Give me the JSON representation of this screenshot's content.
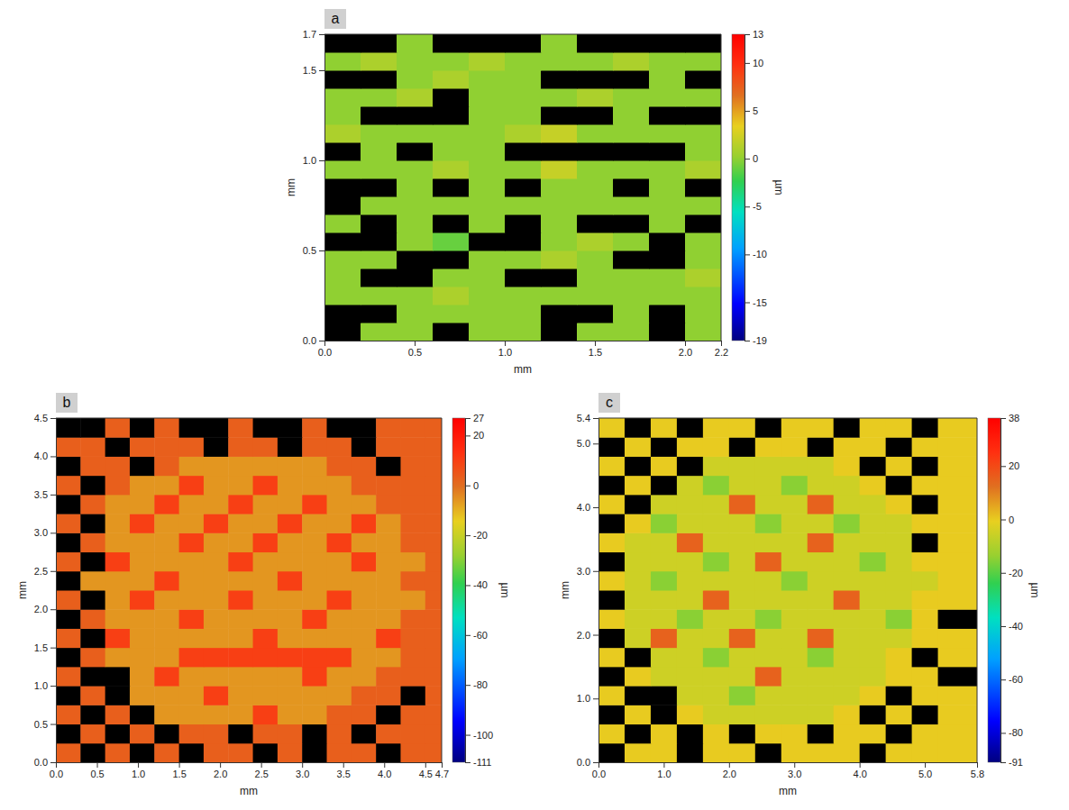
{
  "chart_data": [
    {
      "type": "heatmap",
      "title": "a",
      "x_label": "mm",
      "y_label": "mm",
      "xlim": [
        0,
        2.2
      ],
      "ylim": [
        0,
        1.7
      ],
      "xticks": [
        {
          "value": 0,
          "label": "0.0"
        },
        0.5,
        {
          "value": 1,
          "label": "1.0"
        },
        1.5,
        {
          "value": 2,
          "label": "2.0"
        },
        2.2
      ],
      "yticks": [
        {
          "value": 0,
          "label": "0.0"
        },
        0.5,
        {
          "value": 1,
          "label": "1.0"
        },
        1.5,
        1.7
      ],
      "x": [
        0.1,
        0.3,
        0.5,
        0.7,
        0.9,
        1.1,
        1.3,
        1.5,
        1.7,
        1.9,
        2.1
      ],
      "y": [
        0.05,
        0.15,
        0.25,
        0.35,
        0.45,
        0.55,
        0.65,
        0.75,
        0.85,
        0.95,
        1.05,
        1.15,
        1.25,
        1.35,
        1.45,
        1.55,
        1.65
      ],
      "z": [
        [
          null,
          0,
          0,
          null,
          0,
          0,
          null,
          0,
          0,
          null,
          0
        ],
        [
          null,
          null,
          0,
          0,
          0,
          0,
          null,
          null,
          0,
          null,
          0
        ],
        [
          0,
          0,
          0,
          1,
          0,
          0,
          0,
          0,
          0,
          0,
          0
        ],
        [
          0,
          null,
          null,
          0,
          0,
          null,
          null,
          0,
          0,
          0,
          1
        ],
        [
          0,
          0,
          null,
          null,
          0,
          0,
          1,
          0,
          null,
          null,
          0
        ],
        [
          null,
          null,
          0,
          -1,
          null,
          null,
          0,
          1,
          0,
          null,
          0
        ],
        [
          0,
          null,
          0,
          null,
          0,
          null,
          0,
          null,
          null,
          0,
          null
        ],
        [
          null,
          0,
          0,
          0,
          0,
          0,
          0,
          0,
          0,
          0,
          0
        ],
        [
          null,
          null,
          0,
          null,
          0,
          null,
          0,
          0,
          null,
          0,
          null
        ],
        [
          0,
          0,
          0,
          1,
          0,
          0,
          2,
          0,
          0,
          0,
          1
        ],
        [
          null,
          0,
          null,
          0,
          0,
          null,
          null,
          null,
          null,
          null,
          0
        ],
        [
          1,
          0,
          0,
          0,
          0,
          1,
          2,
          0,
          0,
          0,
          0
        ],
        [
          0,
          null,
          null,
          null,
          0,
          0,
          null,
          null,
          0,
          null,
          null
        ],
        [
          0,
          0,
          1,
          null,
          0,
          0,
          0,
          1,
          0,
          0,
          0
        ],
        [
          null,
          null,
          0,
          1,
          0,
          0,
          null,
          null,
          null,
          0,
          null
        ],
        [
          0,
          1,
          0,
          0,
          1,
          0,
          0,
          0,
          1,
          0,
          0
        ],
        [
          null,
          null,
          0,
          null,
          null,
          null,
          0,
          null,
          null,
          null,
          null
        ]
      ],
      "colorbar": {
        "range": [
          -19,
          13
        ],
        "ticks": [
          13,
          10,
          5,
          0,
          -5,
          -10,
          -15,
          -19
        ],
        "label": "µm"
      }
    },
    {
      "type": "heatmap",
      "title": "b",
      "x_label": "mm",
      "y_label": "mm",
      "xlim": [
        0,
        4.7
      ],
      "ylim": [
        0,
        4.5
      ],
      "xticks": [
        {
          "value": 0,
          "label": "0.0"
        },
        0.5,
        {
          "value": 1,
          "label": "1.0"
        },
        1.5,
        {
          "value": 2,
          "label": "2.0"
        },
        2.5,
        {
          "value": 3,
          "label": "3.0"
        },
        3.5,
        {
          "value": 4,
          "label": "4.0"
        },
        4.5,
        4.7
      ],
      "yticks": [
        {
          "value": 0,
          "label": "0.0"
        },
        0.5,
        {
          "value": 1,
          "label": "1.0"
        },
        1.5,
        {
          "value": 2,
          "label": "2.0"
        },
        2.5,
        {
          "value": 3,
          "label": "3.0"
        },
        3.5,
        {
          "value": 4,
          "label": "4.0"
        },
        4.5
      ],
      "x": [
        0.15,
        0.45,
        0.75,
        1.05,
        1.35,
        1.65,
        1.95,
        2.25,
        2.55,
        2.85,
        3.15,
        3.45,
        3.75,
        4.05,
        4.35,
        4.65
      ],
      "y": [
        0.125,
        0.375,
        0.625,
        0.875,
        1.125,
        1.375,
        1.625,
        1.875,
        2.125,
        2.375,
        2.625,
        2.875,
        3.125,
        3.375,
        3.625,
        3.875,
        4.125,
        4.375
      ],
      "z": [
        [
          3,
          null,
          3,
          null,
          3,
          null,
          3,
          3,
          null,
          3,
          null,
          3,
          3,
          null,
          3,
          3
        ],
        [
          null,
          3,
          null,
          3,
          null,
          3,
          3,
          null,
          3,
          3,
          null,
          3,
          null,
          3,
          3,
          3
        ],
        [
          3,
          null,
          3,
          null,
          -6,
          -6,
          -6,
          -6,
          10,
          -6,
          -6,
          3,
          3,
          null,
          3,
          3
        ],
        [
          null,
          3,
          null,
          -6,
          -6,
          -6,
          10,
          -6,
          -6,
          -6,
          -6,
          -6,
          3,
          3,
          null,
          3
        ],
        [
          3,
          null,
          null,
          -6,
          10,
          -6,
          -6,
          -6,
          -6,
          -6,
          10,
          -6,
          -6,
          3,
          3,
          3
        ],
        [
          null,
          3,
          -6,
          -6,
          -6,
          10,
          10,
          10,
          10,
          10,
          10,
          10,
          -6,
          -6,
          3,
          3
        ],
        [
          3,
          null,
          10,
          -6,
          -6,
          -6,
          -6,
          -6,
          10,
          -6,
          -6,
          -6,
          -6,
          10,
          3,
          3
        ],
        [
          null,
          3,
          -6,
          -6,
          -6,
          10,
          -6,
          -6,
          -6,
          -6,
          10,
          -6,
          -6,
          -6,
          3,
          3
        ],
        [
          3,
          null,
          -6,
          10,
          -6,
          -6,
          -6,
          10,
          -6,
          -6,
          -6,
          10,
          -6,
          -6,
          -6,
          3
        ],
        [
          null,
          -6,
          -6,
          -6,
          10,
          -6,
          -6,
          -6,
          -6,
          10,
          -6,
          -6,
          -6,
          -6,
          3,
          3
        ],
        [
          3,
          null,
          10,
          -6,
          -6,
          -6,
          -6,
          10,
          -6,
          -6,
          -6,
          -6,
          10,
          -6,
          -6,
          3
        ],
        [
          null,
          3,
          -6,
          -6,
          -6,
          10,
          -6,
          -6,
          10,
          -6,
          -6,
          10,
          -6,
          -6,
          3,
          3
        ],
        [
          3,
          null,
          -6,
          10,
          -6,
          -6,
          10,
          -6,
          -6,
          10,
          -6,
          -6,
          10,
          -6,
          3,
          3
        ],
        [
          null,
          3,
          -6,
          -6,
          10,
          -6,
          -6,
          10,
          -6,
          -6,
          10,
          -6,
          -6,
          3,
          3,
          3
        ],
        [
          3,
          null,
          3,
          -6,
          -6,
          10,
          -6,
          -6,
          10,
          -6,
          -6,
          -6,
          3,
          3,
          3,
          3
        ],
        [
          null,
          3,
          3,
          null,
          3,
          -6,
          -6,
          -6,
          -6,
          -6,
          -6,
          3,
          3,
          null,
          3,
          3
        ],
        [
          3,
          3,
          null,
          3,
          3,
          3,
          null,
          3,
          3,
          null,
          3,
          3,
          null,
          3,
          3,
          3
        ],
        [
          null,
          null,
          3,
          null,
          3,
          null,
          null,
          3,
          null,
          null,
          3,
          null,
          null,
          3,
          3,
          3
        ]
      ],
      "colorbar": {
        "range": [
          -111,
          27
        ],
        "ticks": [
          27,
          20,
          0,
          -20,
          -40,
          -60,
          -80,
          -100,
          -111
        ],
        "label": "µm"
      }
    },
    {
      "type": "heatmap",
      "title": "c",
      "x_label": "mm",
      "y_label": "mm",
      "xlim": [
        0,
        5.8
      ],
      "ylim": [
        0,
        5.4
      ],
      "xticks": [
        {
          "value": 0,
          "label": "0.0"
        },
        {
          "value": 1,
          "label": "1.0"
        },
        {
          "value": 2,
          "label": "2.0"
        },
        {
          "value": 3,
          "label": "3.0"
        },
        {
          "value": 4,
          "label": "4.0"
        },
        {
          "value": 5,
          "label": "5.0"
        },
        5.8
      ],
      "yticks": [
        {
          "value": 0,
          "label": "0.0"
        },
        {
          "value": 1,
          "label": "1.0"
        },
        {
          "value": 2,
          "label": "2.0"
        },
        {
          "value": 3,
          "label": "3.0"
        },
        {
          "value": 4,
          "label": "4.0"
        },
        {
          "value": 5,
          "label": "5.0"
        },
        5.4
      ],
      "x": [
        0.2,
        0.6,
        1.0,
        1.4,
        1.8,
        2.2,
        2.6,
        3.0,
        3.4,
        3.8,
        4.2,
        4.6,
        5.0,
        5.4
      ],
      "y": [
        0.15,
        0.45,
        0.75,
        1.05,
        1.35,
        1.65,
        1.95,
        2.25,
        2.55,
        2.85,
        3.15,
        3.45,
        3.75,
        4.05,
        4.35,
        4.65,
        4.95,
        5.25
      ],
      "z": [
        [
          null,
          0,
          0,
          null,
          0,
          0,
          null,
          0,
          0,
          0,
          null,
          0,
          0,
          0
        ],
        [
          0,
          null,
          0,
          null,
          0,
          null,
          0,
          0,
          null,
          0,
          0,
          null,
          0,
          0
        ],
        [
          null,
          0,
          null,
          0,
          -5,
          -5,
          -5,
          -5,
          -5,
          0,
          null,
          0,
          null,
          0
        ],
        [
          0,
          null,
          null,
          -5,
          -5,
          -15,
          -5,
          -5,
          -5,
          -5,
          0,
          null,
          0,
          0
        ],
        [
          null,
          0,
          -5,
          -5,
          -5,
          -5,
          15,
          -5,
          -5,
          -5,
          -5,
          0,
          0,
          null
        ],
        [
          0,
          null,
          -5,
          -5,
          -15,
          -5,
          -5,
          -5,
          -15,
          -5,
          -5,
          0,
          null,
          0
        ],
        [
          null,
          -5,
          15,
          -5,
          -5,
          15,
          -5,
          -5,
          15,
          -5,
          -5,
          -5,
          0,
          0
        ],
        [
          0,
          -5,
          -5,
          -15,
          -5,
          -5,
          -15,
          -5,
          -5,
          -5,
          -5,
          -15,
          0,
          null
        ],
        [
          null,
          -5,
          -5,
          -5,
          15,
          -5,
          -5,
          -5,
          -5,
          15,
          -5,
          -5,
          0,
          0
        ],
        [
          0,
          -5,
          -15,
          -5,
          -5,
          -5,
          -5,
          -15,
          -5,
          -5,
          -5,
          -5,
          -5,
          0
        ],
        [
          null,
          -5,
          -5,
          -5,
          -15,
          -5,
          15,
          -5,
          -5,
          -5,
          -15,
          -5,
          0,
          0
        ],
        [
          0,
          -5,
          -5,
          15,
          -5,
          -5,
          -5,
          -5,
          15,
          -5,
          -5,
          -5,
          null,
          0
        ],
        [
          null,
          0,
          -15,
          -5,
          -5,
          -5,
          -15,
          -5,
          -5,
          -15,
          -5,
          -5,
          0,
          0
        ],
        [
          0,
          null,
          -5,
          -5,
          -5,
          15,
          -5,
          -5,
          15,
          -5,
          -5,
          0,
          null,
          0
        ],
        [
          null,
          0,
          null,
          -5,
          -15,
          -5,
          -5,
          -15,
          -5,
          -5,
          0,
          null,
          0,
          0
        ],
        [
          0,
          null,
          0,
          null,
          -5,
          -5,
          -5,
          -5,
          -5,
          0,
          null,
          0,
          null,
          0
        ],
        [
          null,
          0,
          null,
          0,
          0,
          null,
          0,
          0,
          null,
          0,
          0,
          null,
          0,
          0
        ],
        [
          0,
          null,
          0,
          null,
          0,
          0,
          null,
          0,
          0,
          null,
          0,
          0,
          null,
          0
        ]
      ],
      "colorbar": {
        "range": [
          -91,
          38
        ],
        "ticks": [
          38,
          20,
          0,
          -20,
          -40,
          -60,
          -80,
          -91
        ],
        "label": "µm"
      }
    }
  ]
}
